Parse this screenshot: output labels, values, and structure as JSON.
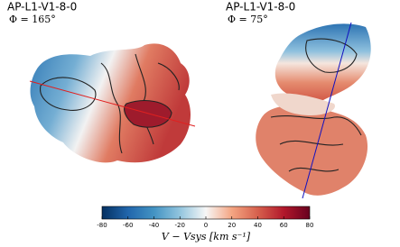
{
  "panels": [
    {
      "title": "AP-L1-V1-8-0",
      "subtitle": "Φ = 165°"
    },
    {
      "title": "AP-L1-V1-8-0",
      "subtitle": "Φ = 75°"
    }
  ],
  "colorbar": {
    "label": "V − Vsys [km s⁻¹]",
    "lim": [
      -80,
      80
    ],
    "ticks": [
      -80,
      -60,
      -40,
      -20,
      0,
      20,
      40,
      60,
      80
    ],
    "colors": [
      "#053061",
      "#2166ac",
      "#4393c3",
      "#92c5de",
      "#f7f7f7",
      "#f4a582",
      "#d6604d",
      "#b2182b",
      "#67001f"
    ]
  }
}
